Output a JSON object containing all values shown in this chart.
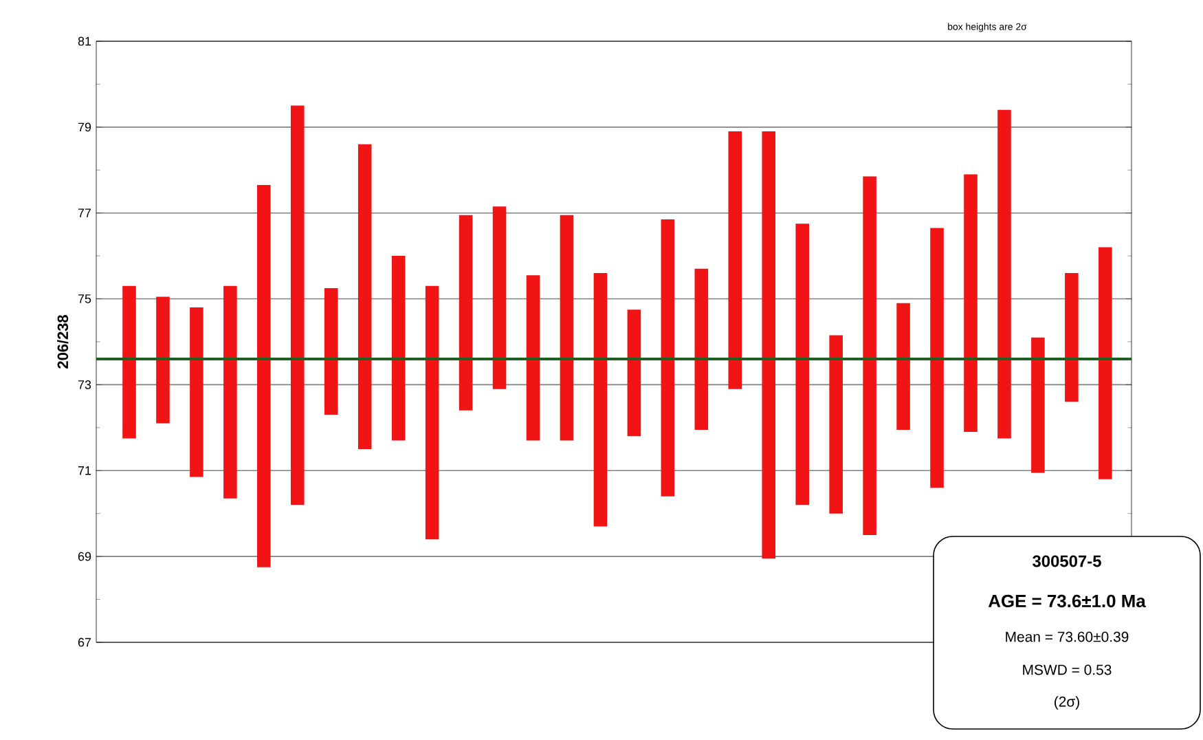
{
  "chart_data": {
    "type": "bar",
    "ylabel": "206/238",
    "categories": [
      null,
      null,
      null,
      null,
      null,
      null,
      null,
      null,
      null,
      null,
      null,
      null,
      null,
      null,
      null,
      null,
      null,
      null,
      null,
      null,
      null,
      null,
      null,
      null,
      null,
      null,
      null,
      null,
      null,
      null
    ],
    "base": [
      71.75,
      72.1,
      70.85,
      70.35,
      68.75,
      70.2,
      72.3,
      71.5,
      71.7,
      69.4,
      72.4,
      72.9,
      71.7,
      71.7,
      69.7,
      71.8,
      70.4,
      71.95,
      72.9,
      68.95,
      70.2,
      70.0,
      69.5,
      71.95,
      70.6,
      71.9,
      71.75,
      70.95,
      72.6,
      70.8
    ],
    "values": [
      3.55,
      2.95,
      3.95,
      4.95,
      8.9,
      9.3,
      2.95,
      7.1,
      4.3,
      5.9,
      4.55,
      4.25,
      3.85,
      5.25,
      5.9,
      2.95,
      6.45,
      3.75,
      6.0,
      9.95,
      6.55,
      4.15,
      8.35,
      2.95,
      6.05,
      6.0,
      7.65,
      3.15,
      3.0,
      5.4
    ],
    "color": "#f01414",
    "ylim": [
      67,
      81
    ],
    "yticks": [
      67,
      69,
      71,
      73,
      75,
      77,
      79,
      81
    ],
    "grid": "y",
    "ref_lines": [
      {
        "axis": "y",
        "value": 73.6,
        "color": "#1f5f1f"
      }
    ],
    "annotations": [
      "box heights are 2σ",
      "300507-5",
      "AGE = 73.6±1.0 Ma",
      "Mean = 73.60±0.39",
      "MSWD = 0.53",
      "(2σ)"
    ]
  }
}
